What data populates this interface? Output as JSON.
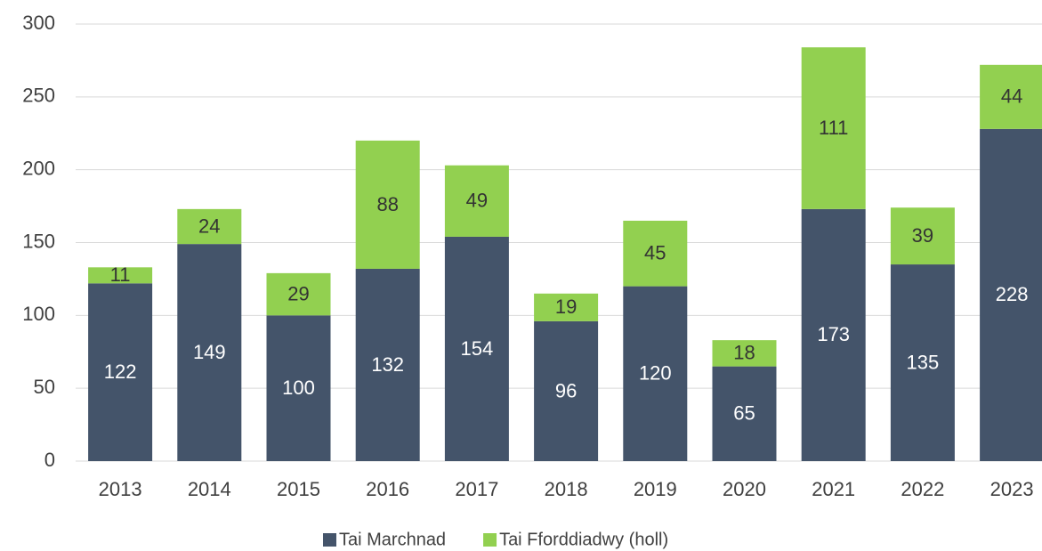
{
  "chart_data": {
    "type": "stacked_bar",
    "categories": [
      "2013",
      "2014",
      "2015",
      "2016",
      "2017",
      "2018",
      "2019",
      "2020",
      "2021",
      "2022",
      "2023"
    ],
    "series": [
      {
        "name": "Tai Marchnad",
        "color": "#44546a",
        "label_color": "#ffffff",
        "values": [
          122,
          149,
          100,
          132,
          154,
          96,
          120,
          65,
          173,
          135,
          228
        ]
      },
      {
        "name": "Tai Fforddiadwy (holl)",
        "color": "#92d050",
        "label_color": "#333333",
        "values": [
          11,
          24,
          29,
          88,
          49,
          19,
          45,
          18,
          111,
          39,
          44
        ]
      }
    ],
    "ylim": [
      0,
      300
    ],
    "yticks": [
      0,
      50,
      100,
      150,
      200,
      250,
      300
    ],
    "grid": true,
    "legend": "bottom"
  }
}
